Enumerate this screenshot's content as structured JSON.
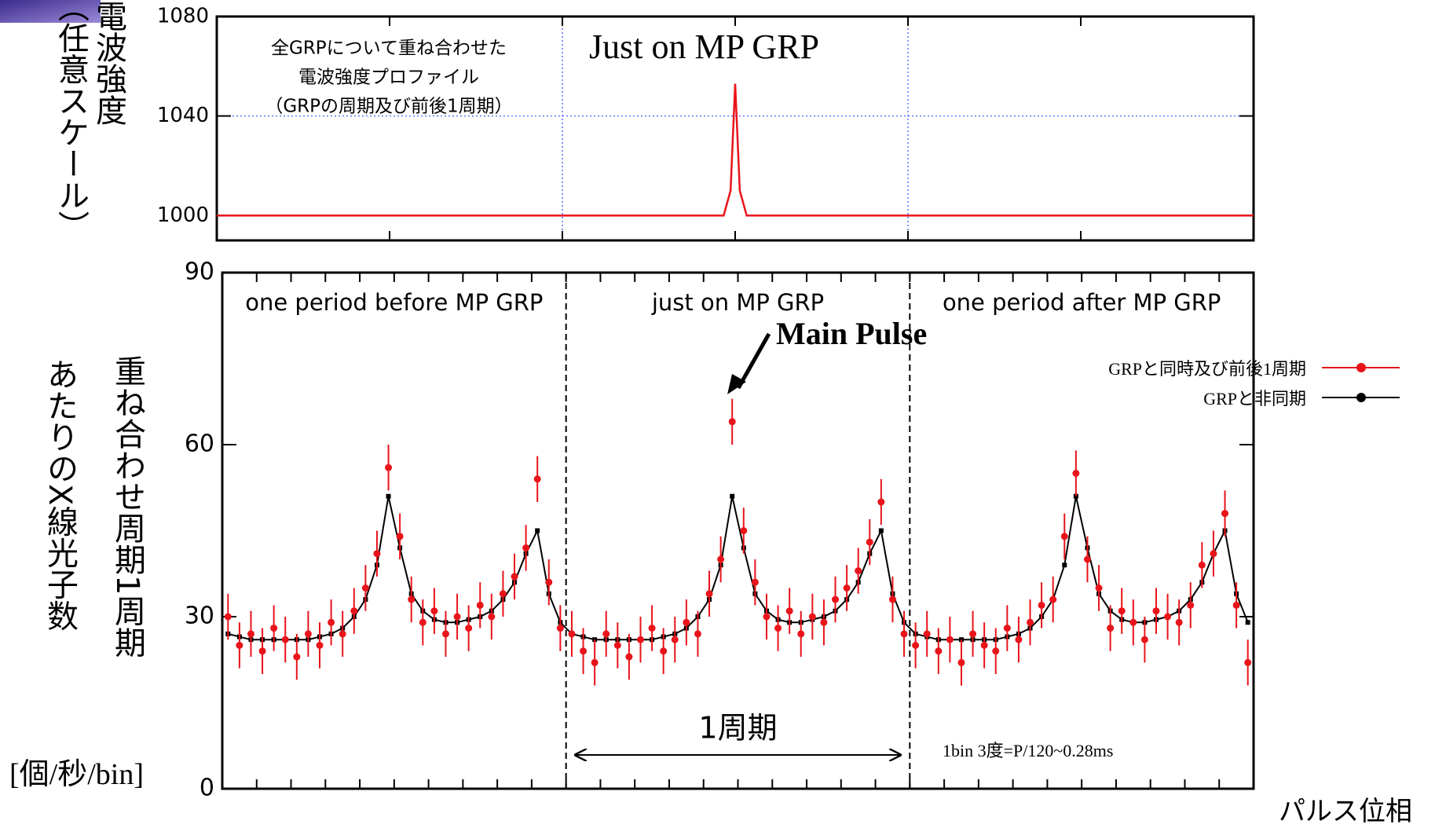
{
  "chart_data": [
    {
      "type": "line",
      "ylabel_lines": [
        "電波強度",
        "（任意スケール）"
      ],
      "annotation_lines": [
        "全GRPについて重ね合わせた",
        "電波強度プロファイル",
        "（GRPの周期及び前後1周期）"
      ],
      "annotation": "Just on MP GRP",
      "x": [
        0,
        44,
        44.6,
        45,
        45.4,
        46,
        90
      ],
      "values": [
        1000,
        1000,
        1010,
        1053,
        1010,
        1000,
        1000
      ],
      "color": "#e8141a",
      "xlim": [
        0,
        90
      ],
      "ylim": [
        990,
        1080
      ],
      "xticks": [
        0,
        15,
        30,
        45,
        60,
        75,
        90
      ],
      "yticks": [
        1000,
        1040,
        1080
      ],
      "xgrid": [
        30,
        60
      ],
      "ygrid": [
        1040
      ]
    },
    {
      "type": "errorbar",
      "ylabel_lines": [
        "重ね合わせ周期1周期",
        "あたりのX線光子数"
      ],
      "yunit": "[個/秒/bin]",
      "xlabel": "パルス位相",
      "regions": [
        "one period before MP GRP",
        "just on MP GRP",
        "one period after MP GRP"
      ],
      "dividers": [
        30,
        60
      ],
      "pulse_label": "Main Pulse",
      "period_label": "1周期",
      "bin_note": "1bin 3度=P/120~0.28ms",
      "x": [
        0.5,
        1.5,
        2.5,
        3.5,
        4.5,
        5.5,
        6.5,
        7.5,
        8.5,
        9.5,
        10.5,
        11.5,
        12.5,
        13.5,
        14.5,
        15.5,
        16.5,
        17.5,
        18.5,
        19.5,
        20.5,
        21.5,
        22.5,
        23.5,
        24.5,
        25.5,
        26.5,
        27.5,
        28.5,
        29.5,
        30.5,
        31.5,
        32.5,
        33.5,
        34.5,
        35.5,
        36.5,
        37.5,
        38.5,
        39.5,
        40.5,
        41.5,
        42.5,
        43.5,
        44.5,
        45.5,
        46.5,
        47.5,
        48.5,
        49.5,
        50.5,
        51.5,
        52.5,
        53.5,
        54.5,
        55.5,
        56.5,
        57.5,
        58.5,
        59.5,
        60.5,
        61.5,
        62.5,
        63.5,
        64.5,
        65.5,
        66.5,
        67.5,
        68.5,
        69.5,
        70.5,
        71.5,
        72.5,
        73.5,
        74.5,
        75.5,
        76.5,
        77.5,
        78.5,
        79.5,
        80.5,
        81.5,
        82.5,
        83.5,
        84.5,
        85.5,
        86.5,
        87.5,
        88.5,
        89.5
      ],
      "series": [
        {
          "name": "GRPと同時及び前後1周期",
          "color": "#e8141a",
          "values": [
            30,
            25,
            27,
            24,
            28,
            26,
            23,
            27,
            25,
            29,
            27,
            31,
            35,
            41,
            56,
            44,
            33,
            29,
            31,
            27,
            30,
            28,
            32,
            30,
            34,
            37,
            42,
            54,
            36,
            28,
            27,
            24,
            22,
            27,
            25,
            23,
            26,
            28,
            24,
            26,
            29,
            27,
            34,
            40,
            64,
            45,
            36,
            30,
            28,
            31,
            27,
            30,
            29,
            33,
            35,
            38,
            43,
            50,
            33,
            27,
            25,
            27,
            24,
            26,
            22,
            27,
            25,
            24,
            28,
            26,
            29,
            32,
            33,
            44,
            55,
            40,
            35,
            28,
            31,
            29,
            26,
            31,
            30,
            29,
            32,
            39,
            41,
            48,
            32,
            22
          ],
          "errors": [
            4,
            4,
            4,
            4,
            4,
            4,
            4,
            4,
            4,
            4,
            4,
            4,
            4,
            4,
            4,
            4,
            4,
            4,
            4,
            4,
            4,
            4,
            4,
            4,
            4,
            4,
            4,
            4,
            4,
            4,
            4,
            4,
            4,
            4,
            4,
            4,
            4,
            4,
            4,
            4,
            4,
            4,
            4,
            4,
            4,
            4,
            4,
            4,
            4,
            4,
            4,
            4,
            4,
            4,
            4,
            4,
            4,
            4,
            4,
            4,
            4,
            4,
            4,
            4,
            4,
            4,
            4,
            4,
            4,
            4,
            4,
            4,
            4,
            4,
            4,
            4,
            4,
            4,
            4,
            4,
            4,
            4,
            4,
            4,
            4,
            4,
            4,
            4,
            4,
            4
          ]
        },
        {
          "name": "GRPと非同期",
          "color": "#000000",
          "values": [
            27,
            26.5,
            26,
            26,
            26,
            26,
            26,
            26,
            26.5,
            27,
            28,
            30,
            33,
            39,
            51,
            42,
            34,
            31,
            29.5,
            29,
            29,
            29.5,
            30,
            31,
            33,
            36,
            41,
            45,
            34,
            29,
            27,
            26.5,
            26,
            26,
            26,
            26,
            26,
            26,
            26.5,
            27,
            28,
            30,
            33,
            39,
            51,
            42,
            34,
            31,
            29.5,
            29,
            29,
            29.5,
            30,
            31,
            33,
            36,
            41,
            45,
            34,
            29,
            27,
            26.5,
            26,
            26,
            26,
            26,
            26,
            26,
            26.5,
            27,
            28,
            30,
            33,
            39,
            51,
            42,
            34,
            31,
            29.5,
            29,
            29,
            29.5,
            30,
            31,
            33,
            36,
            41,
            45,
            34,
            29
          ]
        }
      ],
      "xlim": [
        0,
        90
      ],
      "ylim": [
        0,
        90
      ],
      "xticks": [
        0,
        3,
        6,
        9,
        12,
        15,
        18,
        21,
        24,
        27,
        30,
        33,
        36,
        39,
        42,
        45,
        48,
        51,
        54,
        57,
        60,
        63,
        66,
        69,
        72,
        75,
        78,
        81,
        84,
        87,
        90
      ],
      "yticks": [
        0,
        30,
        60,
        90
      ]
    }
  ]
}
